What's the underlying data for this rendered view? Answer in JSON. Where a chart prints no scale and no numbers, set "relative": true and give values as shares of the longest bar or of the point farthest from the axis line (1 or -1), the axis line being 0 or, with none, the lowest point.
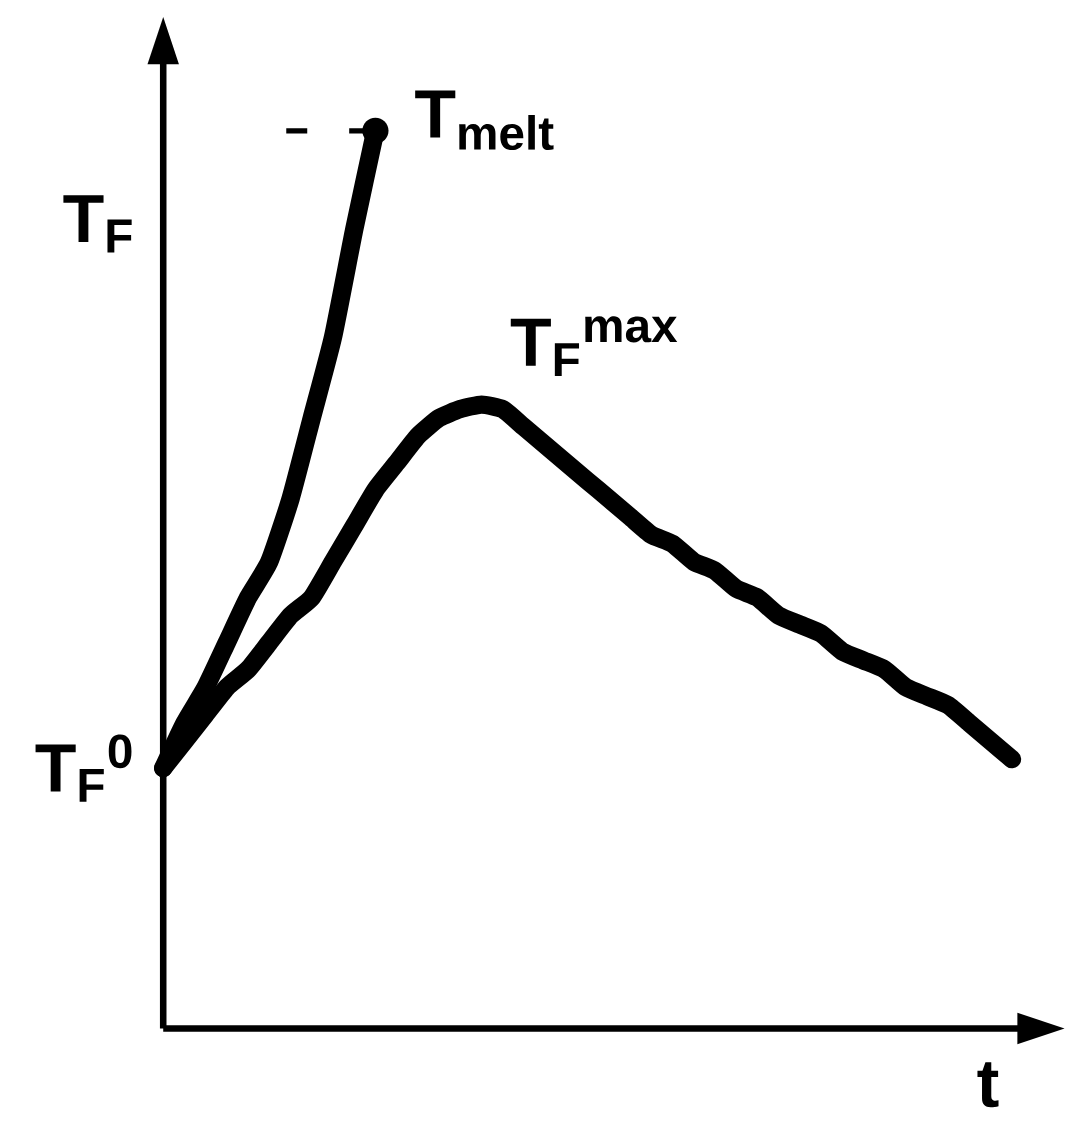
{
  "chart_data": {
    "type": "line",
    "relative": true,
    "xlabel": "t",
    "ylabel": "T$_{F}$",
    "line_style": "solid",
    "marker": "none",
    "categories": [
      null,
      null,
      null,
      null,
      null,
      null,
      null,
      null,
      null,
      null,
      null,
      null,
      null,
      null,
      null,
      null,
      null,
      null,
      null,
      null,
      null,
      null,
      null,
      null,
      null,
      null,
      null,
      null,
      null,
      null,
      null,
      null,
      null,
      null,
      null,
      null,
      null,
      null,
      null,
      null,
      null
    ],
    "series": [
      {
        "color": "#000000",
        "values": [
          0.29,
          0.34,
          0.38,
          0.43,
          0.48,
          0.52,
          0.59,
          0.68,
          0.77,
          0.89,
          1.0,
          null,
          null,
          null,
          null,
          null,
          null,
          null,
          null,
          null,
          null,
          null,
          null,
          null,
          null,
          null,
          null,
          null,
          null,
          null,
          null,
          null,
          null,
          null,
          null,
          null,
          null,
          null,
          null,
          null,
          null
        ]
      },
      {
        "color": "#000000",
        "values": [
          0.29,
          0.32,
          0.35,
          0.38,
          0.4,
          0.43,
          0.46,
          0.48,
          0.52,
          0.56,
          0.6,
          0.63,
          0.66,
          0.68,
          0.69,
          0.695,
          0.69,
          0.67,
          0.65,
          0.63,
          0.61,
          0.59,
          0.57,
          0.55,
          0.54,
          0.52,
          0.51,
          0.49,
          0.48,
          0.46,
          0.45,
          0.44,
          0.42,
          0.41,
          0.4,
          0.38,
          0.37,
          0.36,
          0.34,
          0.32,
          0.3
        ]
      }
    ],
    "annotations": [
      "T$_{F}$$^{0}$",
      "T$_{melt}$",
      "T$_{F}$$^{max}$"
    ]
  }
}
